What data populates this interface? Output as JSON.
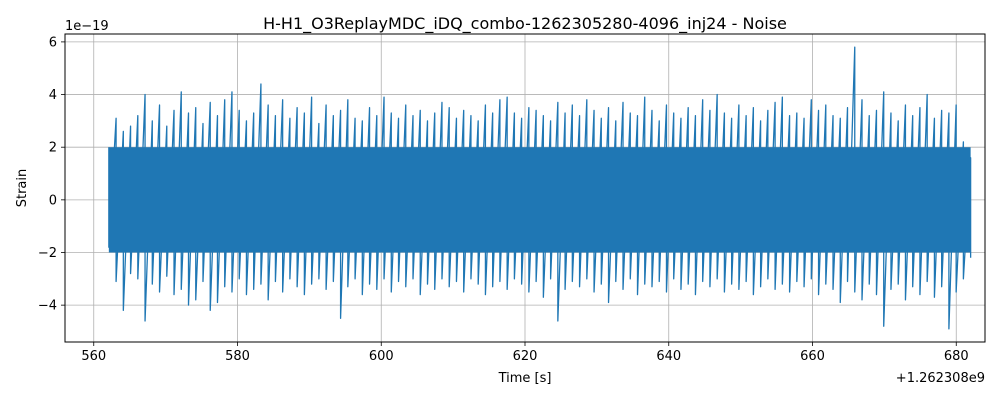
{
  "chart_data": {
    "type": "line",
    "title": "H-H1_O3ReplayMDC_iDQ_combo-1262305280-4096_inj24 - Noise",
    "xlabel": "Time [s]",
    "ylabel": "Strain",
    "x_offset_label": "+1.262308e9",
    "y_exponent_label": "1e−19",
    "xlim": [
      1262308556,
      1262308684
    ],
    "ylim": [
      -5.4e-19,
      6.3e-19
    ],
    "x_ticks": [
      {
        "value": 1262308560,
        "label": "560"
      },
      {
        "value": 1262308580,
        "label": "580"
      },
      {
        "value": 1262308600,
        "label": "600"
      },
      {
        "value": 1262308620,
        "label": "620"
      },
      {
        "value": 1262308640,
        "label": "640"
      },
      {
        "value": 1262308660,
        "label": "660"
      },
      {
        "value": 1262308680,
        "label": "680"
      }
    ],
    "y_ticks": [
      {
        "value": -4e-19,
        "label": "−4"
      },
      {
        "value": -2e-19,
        "label": "−2"
      },
      {
        "value": 0,
        "label": "0"
      },
      {
        "value": 2e-19,
        "label": "2"
      },
      {
        "value": 4e-19,
        "label": "4"
      },
      {
        "value": 6e-19,
        "label": "6"
      }
    ],
    "grid": true,
    "series": [
      {
        "color": "#1f77b4",
        "x_start": 1262308562.1,
        "x_end": 1262308682.0,
        "envelope_max": [
          2e-19,
          3.1e-19,
          2.6e-19,
          2.8e-19,
          3.2e-19,
          4e-19,
          3e-19,
          3.6e-19,
          2.8e-19,
          3.4e-19,
          4.1e-19,
          3.3e-19,
          3.5e-19,
          2.9e-19,
          3.7e-19,
          3.2e-19,
          3.8e-19,
          4.1e-19,
          3.4e-19,
          3e-19,
          3.3e-19,
          4.4e-19,
          3.6e-19,
          3.2e-19,
          3.8e-19,
          3.1e-19,
          3.5e-19,
          3.3e-19,
          3.9e-19,
          2.9e-19,
          3.6e-19,
          3.2e-19,
          3.4e-19,
          3.8e-19,
          3.1e-19,
          3e-19,
          3.5e-19,
          3.2e-19,
          3.9e-19,
          3.3e-19,
          3.1e-19,
          3.6e-19,
          3.2e-19,
          3.4e-19,
          3e-19,
          3.3e-19,
          3.7e-19,
          3.5e-19,
          3.1e-19,
          3.4e-19,
          3.2e-19,
          3e-19,
          3.6e-19,
          3.3e-19,
          3.8e-19,
          3.9e-19,
          3.3e-19,
          3.1e-19,
          3.5e-19,
          3.4e-19,
          3.2e-19,
          3e-19,
          3.7e-19,
          3.3e-19,
          3.6e-19,
          3.2e-19,
          3.8e-19,
          3.4e-19,
          3.1e-19,
          3.5e-19,
          3e-19,
          3.7e-19,
          3.3e-19,
          3.2e-19,
          3.9e-19,
          3.4e-19,
          3e-19,
          3.6e-19,
          3.3e-19,
          3.1e-19,
          3.5e-19,
          3.2e-19,
          3.8e-19,
          3.4e-19,
          4e-19,
          3.3e-19,
          3.1e-19,
          3.6e-19,
          3.2e-19,
          3.5e-19,
          3e-19,
          3.4e-19,
          3.7e-19,
          3.9e-19,
          3.2e-19,
          3.3e-19,
          3.1e-19,
          3.8e-19,
          3.4e-19,
          3.6e-19,
          3.2e-19,
          3.1e-19,
          3.5e-19,
          5.8e-19,
          3.8e-19,
          3.2e-19,
          3.4e-19,
          4.1e-19,
          3.3e-19,
          3e-19,
          3.6e-19,
          3.2e-19,
          3.5e-19,
          4e-19,
          3.1e-19,
          3.4e-19,
          3.3e-19,
          3.6e-19,
          2.2e-19,
          1.6e-19
        ],
        "envelope_min": [
          -1.8e-19,
          -3.1e-19,
          -4.2e-19,
          -2.8e-19,
          -3e-19,
          -4.6e-19,
          -3.2e-19,
          -3.5e-19,
          -2.9e-19,
          -3.6e-19,
          -3.4e-19,
          -4e-19,
          -3.8e-19,
          -3.1e-19,
          -4.2e-19,
          -3.9e-19,
          -3.3e-19,
          -3.5e-19,
          -3e-19,
          -3.6e-19,
          -3.4e-19,
          -3.2e-19,
          -3.8e-19,
          -3.1e-19,
          -3.5e-19,
          -3e-19,
          -3.3e-19,
          -3.6e-19,
          -3.2e-19,
          -3e-19,
          -3.4e-19,
          -3.1e-19,
          -4.5e-19,
          -3.3e-19,
          -3e-19,
          -3.6e-19,
          -3.2e-19,
          -3.4e-19,
          -3e-19,
          -3.5e-19,
          -3.1e-19,
          -3.3e-19,
          -3e-19,
          -3.6e-19,
          -3.2e-19,
          -3.4e-19,
          -3e-19,
          -3.3e-19,
          -3.1e-19,
          -3.5e-19,
          -3e-19,
          -3.2e-19,
          -3.6e-19,
          -3.3e-19,
          -3.1e-19,
          -3.4e-19,
          -3e-19,
          -3.2e-19,
          -3.5e-19,
          -3.1e-19,
          -3.7e-19,
          -3e-19,
          -4.6e-19,
          -3.4e-19,
          -3.1e-19,
          -3.3e-19,
          -3e-19,
          -3.5e-19,
          -3.2e-19,
          -3.9e-19,
          -3.1e-19,
          -3.4e-19,
          -3e-19,
          -3.6e-19,
          -3.2e-19,
          -3.3e-19,
          -3.1e-19,
          -3.5e-19,
          -3e-19,
          -3.4e-19,
          -3.2e-19,
          -3.6e-19,
          -3.1e-19,
          -3.3e-19,
          -3e-19,
          -3.5e-19,
          -3.2e-19,
          -3.4e-19,
          -3.1e-19,
          -3.6e-19,
          -3.3e-19,
          -3e-19,
          -3.4e-19,
          -3.2e-19,
          -3.5e-19,
          -3.1e-19,
          -3.3e-19,
          -3e-19,
          -3.6e-19,
          -3.2e-19,
          -3.4e-19,
          -3.9e-19,
          -3.1e-19,
          -3.5e-19,
          -3.8e-19,
          -3.2e-19,
          -3.6e-19,
          -4.8e-19,
          -3.4e-19,
          -3.2e-19,
          -3.8e-19,
          -3.3e-19,
          -3.6e-19,
          -3.1e-19,
          -3.7e-19,
          -3.3e-19,
          -4.9e-19,
          -3.5e-19,
          -3e-19,
          -2.2e-19
        ]
      }
    ]
  }
}
